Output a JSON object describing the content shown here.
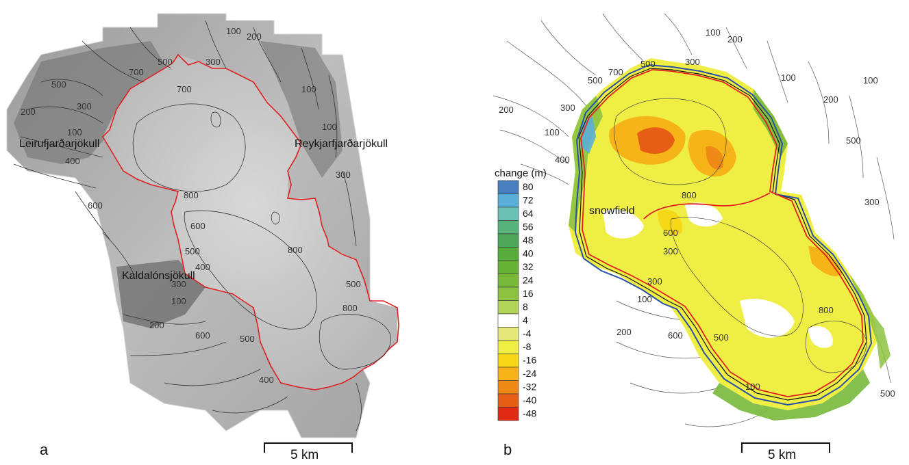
{
  "panel_a": {
    "label": "a",
    "place_names": [
      "Leirufjarðarjökull",
      "Reykjarfjarðarjökull",
      "Kaldalónsjökull"
    ],
    "contour_labels": [
      "200",
      "500",
      "300",
      "100",
      "700",
      "500",
      "300",
      "100",
      "200",
      "100",
      "400",
      "600",
      "800",
      "600",
      "500",
      "400",
      "300",
      "100",
      "800",
      "800",
      "200",
      "600",
      "500",
      "400",
      "300",
      "500",
      "700",
      "100"
    ],
    "scale_label": "5 km",
    "outline_color": "#e02020"
  },
  "panel_b": {
    "label": "b",
    "snowfield_label": "snowfield",
    "contour_labels": [
      "500",
      "100",
      "200",
      "100",
      "300",
      "700",
      "500",
      "300",
      "200",
      "100",
      "200",
      "500",
      "100",
      "400",
      "300",
      "800",
      "600",
      "300",
      "300",
      "100",
      "200",
      "600",
      "500",
      "800",
      "100",
      "500"
    ],
    "scale_label": "5 km",
    "legend": {
      "title": "change (m)",
      "entries": [
        {
          "label": "80",
          "color": "#4a7fbf"
        },
        {
          "label": "72",
          "color": "#5aaed8"
        },
        {
          "label": "64",
          "color": "#6cc0b4"
        },
        {
          "label": "56",
          "color": "#58b27c"
        },
        {
          "label": "48",
          "color": "#4ea658"
        },
        {
          "label": "40",
          "color": "#58ac3c"
        },
        {
          "label": "32",
          "color": "#66b236"
        },
        {
          "label": "24",
          "color": "#78b83a"
        },
        {
          "label": "16",
          "color": "#8cc240"
        },
        {
          "label": "8",
          "color": "#b2d458"
        },
        {
          "label": "4",
          "color": "#ffffff"
        },
        {
          "label": "-4",
          "color": "#e4e87a"
        },
        {
          "label": "-8",
          "color": "#eeee44"
        },
        {
          "label": "-16",
          "color": "#f6d818"
        },
        {
          "label": "-24",
          "color": "#f6b418"
        },
        {
          "label": "-32",
          "color": "#f08a16"
        },
        {
          "label": "-40",
          "color": "#e65e16"
        },
        {
          "label": "-48",
          "color": "#e02a16"
        }
      ]
    },
    "outline_colors": {
      "red": "#e02020",
      "blue": "#2a4fa8",
      "black": "#111111"
    }
  }
}
